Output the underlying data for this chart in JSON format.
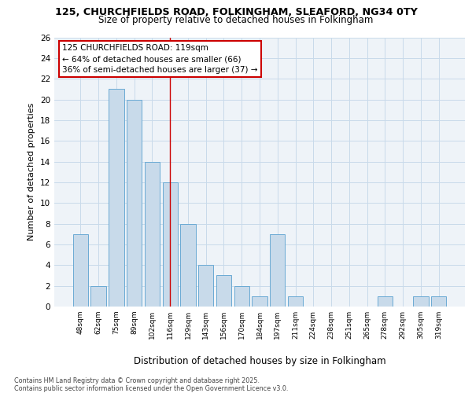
{
  "title_line1": "125, CHURCHFIELDS ROAD, FOLKINGHAM, SLEAFORD, NG34 0TY",
  "title_line2": "Size of property relative to detached houses in Folkingham",
  "xlabel": "Distribution of detached houses by size in Folkingham",
  "ylabel": "Number of detached properties",
  "categories": [
    "48sqm",
    "62sqm",
    "75sqm",
    "89sqm",
    "102sqm",
    "116sqm",
    "129sqm",
    "143sqm",
    "156sqm",
    "170sqm",
    "184sqm",
    "197sqm",
    "211sqm",
    "224sqm",
    "238sqm",
    "251sqm",
    "265sqm",
    "278sqm",
    "292sqm",
    "305sqm",
    "319sqm"
  ],
  "values": [
    7,
    2,
    21,
    20,
    14,
    12,
    8,
    4,
    3,
    2,
    1,
    7,
    1,
    0,
    0,
    0,
    0,
    1,
    0,
    1,
    1
  ],
  "bar_color": "#c8daea",
  "bar_edge_color": "#6aaad4",
  "highlight_index": 5,
  "highlight_line_color": "#cc0000",
  "ylim": [
    0,
    26
  ],
  "yticks": [
    0,
    2,
    4,
    6,
    8,
    10,
    12,
    14,
    16,
    18,
    20,
    22,
    24,
    26
  ],
  "annotation_text": "125 CHURCHFIELDS ROAD: 119sqm\n← 64% of detached houses are smaller (66)\n36% of semi-detached houses are larger (37) →",
  "annotation_box_color": "#ffffff",
  "annotation_box_edge": "#cc0000",
  "footer_text": "Contains HM Land Registry data © Crown copyright and database right 2025.\nContains public sector information licensed under the Open Government Licence v3.0.",
  "grid_color": "#c8daea",
  "background_color": "#eef3f8"
}
